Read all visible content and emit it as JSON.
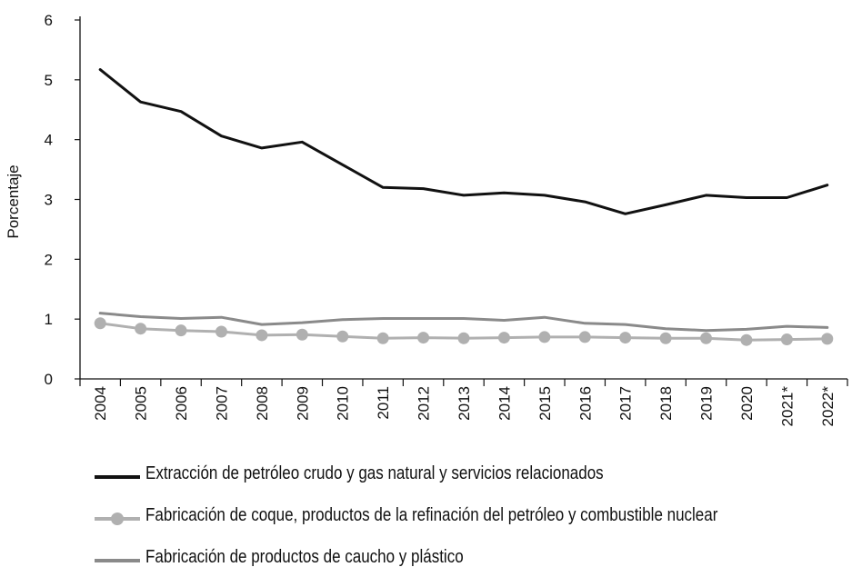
{
  "chart_data": {
    "type": "line",
    "title": "",
    "xlabel": "",
    "ylabel": "Porcentaje",
    "ylim": [
      0,
      6
    ],
    "yticks": [
      0,
      1,
      2,
      3,
      4,
      5,
      6
    ],
    "grid": false,
    "legend_position": "bottom",
    "categories": [
      "2004",
      "2005",
      "2006",
      "2007",
      "2008",
      "2009",
      "2010",
      "2011",
      "2012",
      "2013",
      "2014",
      "2015",
      "2016",
      "2017",
      "2018",
      "2019",
      "2020",
      "2021*",
      "2022*"
    ],
    "series": [
      {
        "name": "Extracción de petróleo crudo y gas natural y servicios relacionados",
        "color": "#111111",
        "marker": "none",
        "values": [
          5.17,
          4.63,
          4.47,
          4.06,
          3.86,
          3.96,
          3.58,
          3.2,
          3.18,
          3.07,
          3.11,
          3.07,
          2.96,
          2.76,
          2.91,
          3.07,
          3.03,
          3.03,
          3.24
        ]
      },
      {
        "name": "Fabricación de coque, productos de la refinación del petróleo y combustible nuclear",
        "color": "#b0b0b0",
        "marker": "circle",
        "values": [
          0.93,
          0.84,
          0.81,
          0.79,
          0.73,
          0.74,
          0.71,
          0.68,
          0.69,
          0.68,
          0.69,
          0.7,
          0.7,
          0.69,
          0.68,
          0.68,
          0.65,
          0.66,
          0.67
        ]
      },
      {
        "name": "Fabricación de productos de caucho y plástico",
        "color": "#8a8a8a",
        "marker": "none",
        "values": [
          1.1,
          1.04,
          1.01,
          1.03,
          0.91,
          0.94,
          0.99,
          1.01,
          1.01,
          1.01,
          0.98,
          1.03,
          0.93,
          0.91,
          0.84,
          0.81,
          0.83,
          0.88,
          0.86
        ]
      }
    ]
  }
}
